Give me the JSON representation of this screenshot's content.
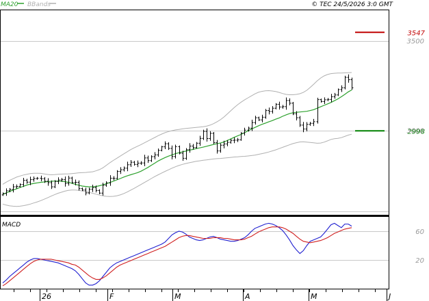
{
  "header": {
    "legend": [
      {
        "name": "MA20",
        "color": "#2ca02c"
      },
      {
        "name": "BBands",
        "color": "#b0b0b0"
      }
    ],
    "copyright": "© TEC 24/5/2026 3:0 GMT"
  },
  "colors": {
    "price": "#000000",
    "ma20": "#2ca02c",
    "bbands": "#b0b0b0",
    "grid": "#c8c8c8",
    "macd": "#1f1fd0",
    "signal": "#d01f1f",
    "resistance": "#c00000",
    "support": "#008000",
    "axis_text": "#999999"
  },
  "chart_data": [
    {
      "type": "candlestick",
      "title": "",
      "x_labels": [
        "26",
        "F",
        "M",
        "A",
        "M",
        "J"
      ],
      "y_ticks": [
        3000,
        3500
      ],
      "ylim": [
        2530,
        3670
      ],
      "grid": true,
      "levels": [
        {
          "name": "resistance",
          "value": 3547,
          "label": "3547"
        },
        {
          "name": "support",
          "value": 2998,
          "label": "2998"
        }
      ],
      "ohlc_close": [
        2649,
        2664,
        2671,
        2686,
        2688,
        2699,
        2722,
        2712,
        2726,
        2732,
        2734,
        2731,
        2717,
        2709,
        2686,
        2716,
        2724,
        2726,
        2705,
        2735,
        2710,
        2711,
        2676,
        2668,
        2652,
        2673,
        2682,
        2666,
        2651,
        2695,
        2708,
        2734,
        2733,
        2772,
        2781,
        2790,
        2809,
        2823,
        2811,
        2818,
        2819,
        2847,
        2832,
        2854,
        2864,
        2889,
        2909,
        2926,
        2900,
        2855,
        2910,
        2873,
        2845,
        2893,
        2913,
        2905,
        2929,
        2956,
        2995,
        2955,
        2984,
        2932,
        2886,
        2918,
        2925,
        2934,
        2945,
        2946,
        2948,
        2985,
        3002,
        3013,
        3044,
        3071,
        3059,
        3074,
        3111,
        3106,
        3124,
        3146,
        3131,
        3133,
        3167,
        3152,
        3093,
        3071,
        3030,
        3008,
        3034,
        3040,
        3049,
        3172,
        3161,
        3171,
        3173,
        3188,
        3198,
        3228,
        3238,
        3296,
        3283,
        3238
      ],
      "ma20": [
        2643,
        2652,
        2660,
        2668,
        2675,
        2682,
        2689,
        2696,
        2701,
        2705,
        2708,
        2711,
        2713,
        2715,
        2717,
        2718,
        2718,
        2717,
        2715,
        2711,
        2706,
        2700,
        2695,
        2690,
        2688,
        2686,
        2686,
        2688,
        2692,
        2697,
        2704,
        2710,
        2717,
        2725,
        2732,
        2740,
        2747,
        2753,
        2759,
        2765,
        2773,
        2783,
        2794,
        2806,
        2818,
        2830,
        2840,
        2849,
        2857,
        2864,
        2871,
        2876,
        2881,
        2885,
        2890,
        2894,
        2899,
        2903,
        2907,
        2912,
        2917,
        2922,
        2926,
        2930,
        2936,
        2944,
        2953,
        2962,
        2970,
        2978,
        2988,
        2998,
        3008,
        3017,
        3026,
        3034,
        3041,
        3048,
        3055,
        3063,
        3070,
        3079,
        3087,
        3094,
        3099,
        3101,
        3103,
        3105,
        3107,
        3111,
        3116,
        3124,
        3132,
        3140,
        3148,
        3156,
        3166,
        3176,
        3188,
        3201,
        3215,
        3226
      ],
      "bb_upper": [
        2700,
        2712,
        2722,
        2731,
        2740,
        2746,
        2752,
        2756,
        2760,
        2762,
        2762,
        2761,
        2758,
        2755,
        2753,
        2754,
        2756,
        2757,
        2758,
        2758,
        2760,
        2762,
        2764,
        2765,
        2766,
        2768,
        2770,
        2775,
        2782,
        2792,
        2806,
        2820,
        2833,
        2845,
        2857,
        2869,
        2881,
        2893,
        2903,
        2912,
        2921,
        2931,
        2941,
        2951,
        2961,
        2971,
        2980,
        2988,
        2994,
        2999,
        3003,
        3006,
        3009,
        3011,
        3013,
        3015,
        3017,
        3019,
        3021,
        3024,
        3030,
        3038,
        3048,
        3060,
        3075,
        3092,
        3110,
        3128,
        3144,
        3158,
        3171,
        3182,
        3193,
        3204,
        3213,
        3218,
        3221,
        3222,
        3220,
        3217,
        3212,
        3206,
        3201,
        3199,
        3199,
        3201,
        3205,
        3212,
        3224,
        3240,
        3258,
        3276,
        3292,
        3304,
        3312,
        3317,
        3319,
        3320,
        3320,
        3321,
        3322,
        3323
      ],
      "bb_lower": [
        2590,
        2584,
        2580,
        2578,
        2577,
        2578,
        2581,
        2585,
        2590,
        2596,
        2602,
        2609,
        2617,
        2625,
        2634,
        2642,
        2650,
        2656,
        2662,
        2666,
        2668,
        2668,
        2666,
        2663,
        2660,
        2655,
        2650,
        2645,
        2640,
        2636,
        2633,
        2632,
        2633,
        2636,
        2641,
        2648,
        2657,
        2667,
        2677,
        2688,
        2699,
        2710,
        2721,
        2732,
        2743,
        2753,
        2763,
        2772,
        2781,
        2790,
        2798,
        2805,
        2811,
        2816,
        2820,
        2824,
        2828,
        2831,
        2834,
        2836,
        2839,
        2841,
        2843,
        2844,
        2846,
        2848,
        2850,
        2852,
        2853,
        2855,
        2856,
        2858,
        2860,
        2863,
        2867,
        2871,
        2875,
        2880,
        2886,
        2892,
        2899,
        2906,
        2913,
        2920,
        2927,
        2932,
        2936,
        2937,
        2935,
        2933,
        2931,
        2929,
        2930,
        2935,
        2942,
        2950,
        2954,
        2956,
        2960,
        2967,
        2974,
        2979
      ]
    },
    {
      "type": "line",
      "title": "MACD",
      "y_ticks": [
        20,
        60
      ],
      "ylim": [
        -20,
        80
      ],
      "series": [
        {
          "name": "MACD",
          "values": [
            -12,
            -8,
            -3,
            1,
            5,
            9,
            13,
            17,
            20,
            22,
            22,
            21,
            20,
            19,
            18,
            17,
            16,
            14,
            12,
            10,
            8,
            5,
            0,
            -6,
            -12,
            -15,
            -15,
            -13,
            -9,
            -3,
            3,
            9,
            13,
            16,
            18,
            20,
            22,
            24,
            26,
            28,
            30,
            32,
            34,
            36,
            38,
            40,
            42,
            45,
            50,
            55,
            58,
            60,
            59,
            56,
            52,
            50,
            48,
            47,
            48,
            50,
            52,
            53,
            51,
            49,
            48,
            47,
            46,
            46,
            47,
            49,
            51,
            55,
            60,
            64,
            66,
            68,
            70,
            71,
            70,
            68,
            65,
            61,
            55,
            48,
            40,
            34,
            29,
            33,
            40,
            46,
            48,
            50,
            52,
            57,
            63,
            69,
            71,
            68,
            65,
            70,
            70,
            67
          ]
        },
        {
          "name": "Signal",
          "values": [
            -16,
            -13,
            -9,
            -5,
            -1,
            3,
            7,
            11,
            15,
            18,
            20,
            21,
            21,
            21,
            21,
            20,
            19,
            18,
            17,
            16,
            14,
            13,
            10,
            6,
            2,
            -2,
            -5,
            -7,
            -7,
            -5,
            -2,
            2,
            6,
            10,
            13,
            15,
            17,
            19,
            21,
            23,
            25,
            27,
            29,
            31,
            33,
            35,
            37,
            39,
            42,
            45,
            48,
            51,
            53,
            54,
            54,
            53,
            52,
            51,
            50,
            50,
            50,
            51,
            51,
            51,
            50,
            50,
            49,
            48,
            48,
            48,
            49,
            51,
            53,
            56,
            59,
            61,
            63,
            65,
            66,
            66,
            66,
            65,
            63,
            60,
            57,
            53,
            49,
            46,
            45,
            44,
            45,
            46,
            47,
            49,
            51,
            54,
            57,
            59,
            61,
            63,
            64,
            65
          ]
        }
      ]
    }
  ]
}
